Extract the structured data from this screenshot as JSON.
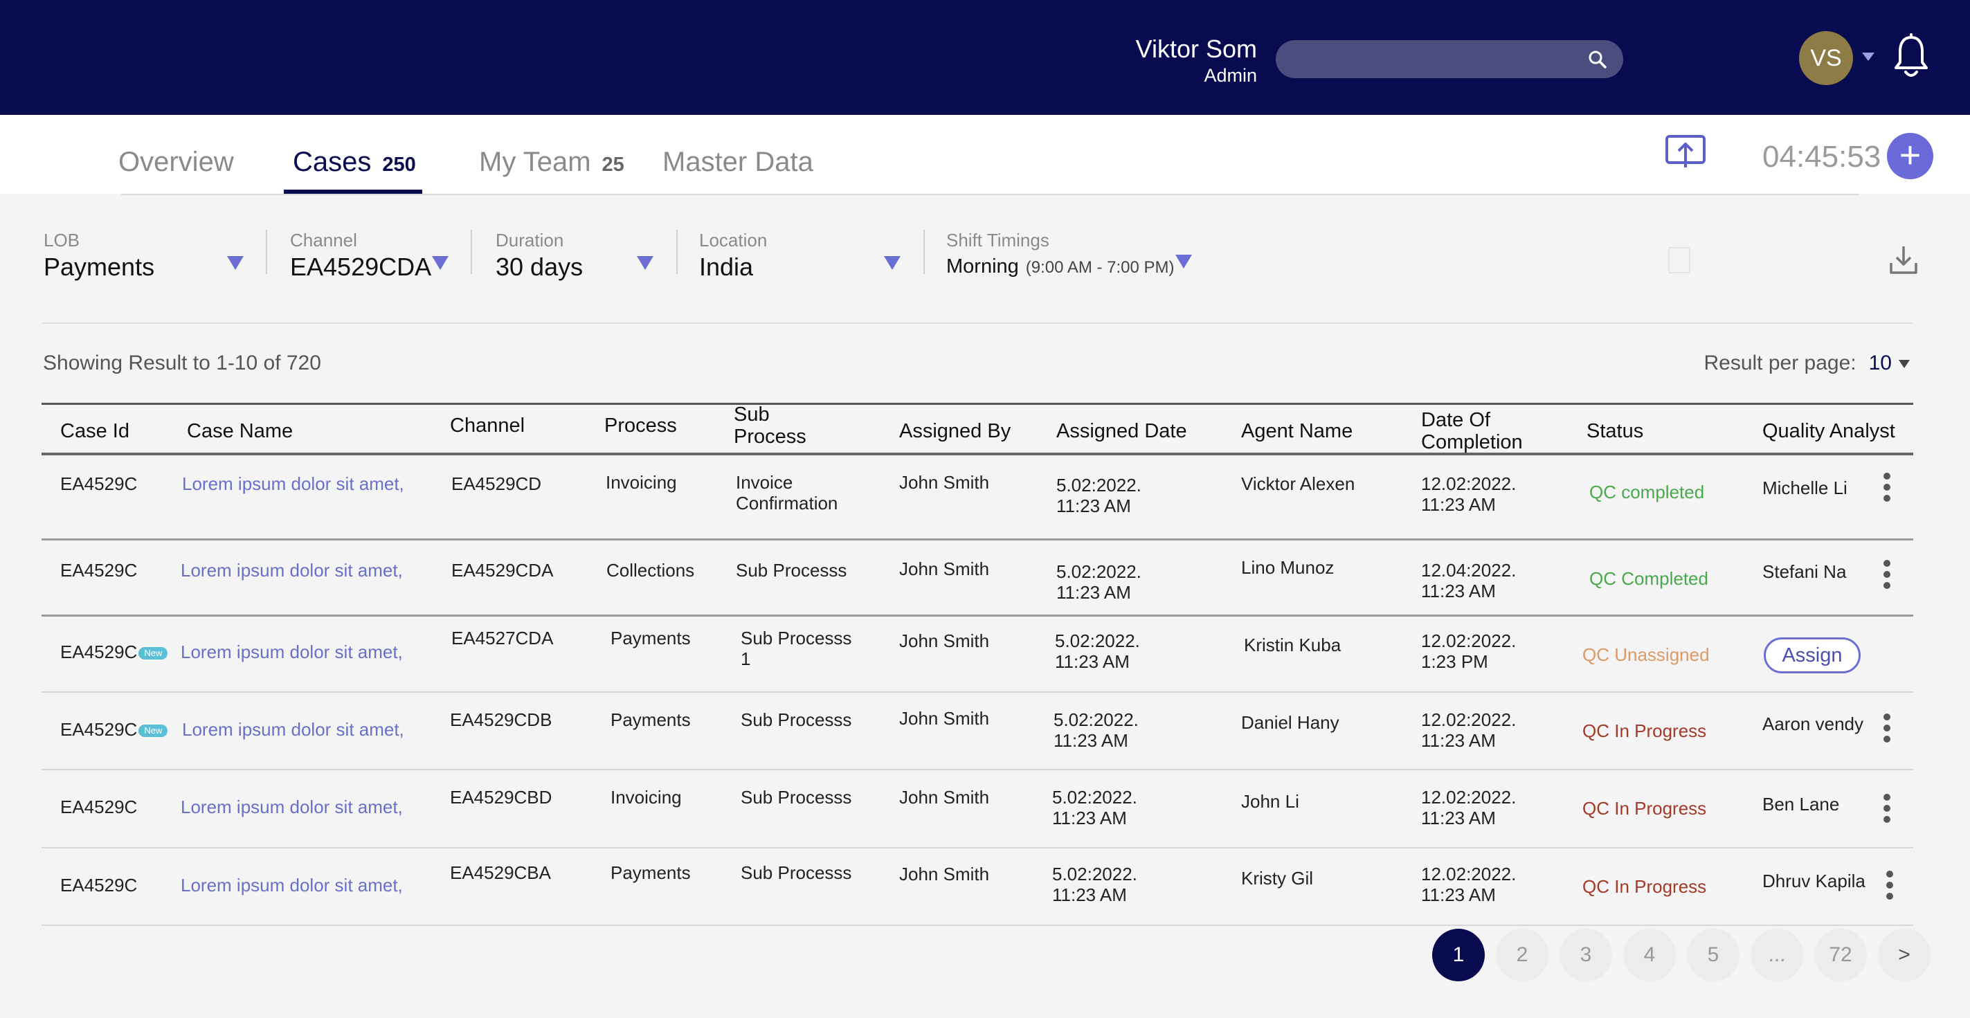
{
  "header": {
    "search_placeholder": "",
    "user_name": "Viktor Som",
    "user_role": "Admin",
    "avatar_initials": "VS"
  },
  "tabs": [
    {
      "label": "Overview",
      "count": ""
    },
    {
      "label": "Cases",
      "count": "250"
    },
    {
      "label": "My Team",
      "count": "25"
    },
    {
      "label": "Master Data",
      "count": ""
    }
  ],
  "timer": "04:45:53",
  "plus_label": "+",
  "filters": {
    "lob": {
      "label": "LOB",
      "value": "Payments"
    },
    "channel": {
      "label": "Channel",
      "value": "EA4529CDA"
    },
    "duration": {
      "label": "Duration",
      "value": "30 days"
    },
    "location": {
      "label": "Location",
      "value": "India"
    },
    "shift": {
      "label": "Shift Timings",
      "value": "Morning",
      "detail": "(9:00 AM - 7:00 PM)"
    }
  },
  "results": {
    "showing": "Showing Result to 1-10 of 720",
    "per_page_label": "Result per page:",
    "per_page_value": "10"
  },
  "table": {
    "columns": {
      "case_id": "Case Id",
      "case_name": "Case Name",
      "channel": "Channel",
      "process": "Process",
      "sub_process": "Sub\nProcess",
      "assigned_by": "Assigned By",
      "assigned_date": "Assigned Date",
      "agent_name": "Agent Name",
      "date_completion": "Date Of\nCompletion",
      "status": "Status",
      "quality_analyst": "Quality Analyst"
    },
    "rows": [
      {
        "case_id": "EA4529C",
        "badge": "",
        "case_name": "Lorem ipsum dolor sit amet,",
        "channel": "EA4529CD",
        "process": "Invoicing",
        "sub_process": "Invoice\nConfirmation",
        "assigned_by": "John Smith",
        "assigned_date": "5.02:2022.\n11:23 AM",
        "agent": "Vicktor Alexen",
        "completion": "12.02:2022.\n11:23 AM",
        "status": "QC completed",
        "status_class": "st-green",
        "qa": "Michelle Li",
        "action": "kebab"
      },
      {
        "case_id": "EA4529C",
        "badge": "",
        "case_name": "Lorem ipsum dolor sit amet,",
        "channel": "EA4529CDA",
        "process": "Collections",
        "sub_process": "Sub Processs",
        "assigned_by": "John Smith",
        "assigned_date": "5.02:2022.\n11:23 AM",
        "agent": "Lino Munoz",
        "completion": "12.04:2022.\n11:23 AM",
        "status": "QC Completed",
        "status_class": "st-green",
        "qa": "Stefani Na",
        "action": "kebab"
      },
      {
        "case_id": "EA4529C",
        "badge": "New",
        "case_name": "Lorem ipsum dolor sit amet,",
        "channel": "EA4527CDA",
        "process": "Payments",
        "sub_process": "Sub Processs\n1",
        "assigned_by": "John Smith",
        "assigned_date": "5.02:2022.\n11:23 AM",
        "agent": "Kristin Kuba",
        "completion": "12.02:2022.\n1:23 PM",
        "status": "QC Unassigned",
        "status_class": "st-orange",
        "qa": "",
        "action": "Assign"
      },
      {
        "case_id": "EA4529C",
        "badge": "New",
        "case_name": "Lorem ipsum dolor sit amet,",
        "channel": "EA4529CDB",
        "process": "Payments",
        "sub_process": "Sub Processs",
        "assigned_by": "John Smith",
        "assigned_date": "5.02:2022.\n11:23 AM",
        "agent": "Daniel Hany",
        "completion": "12.02:2022.\n11:23 AM",
        "status": "QC In Progress",
        "status_class": "st-red",
        "qa": "Aaron vendy",
        "action": "kebab"
      },
      {
        "case_id": "EA4529C",
        "badge": "",
        "case_name": "Lorem ipsum dolor sit amet,",
        "channel": "EA4529CBD",
        "process": "Invoicing",
        "sub_process": "Sub Processs",
        "assigned_by": "John Smith",
        "assigned_date": "5.02:2022.\n11:23 AM",
        "agent": "John Li",
        "completion": "12.02:2022.\n11:23 AM",
        "status": "QC In Progress",
        "status_class": "st-red",
        "qa": "Ben Lane",
        "action": "kebab"
      },
      {
        "case_id": "EA4529C",
        "badge": "",
        "case_name": "Lorem ipsum dolor sit amet,",
        "channel": "EA4529CBA",
        "process": "Payments",
        "sub_process": "Sub Processs",
        "assigned_by": "John Smith",
        "assigned_date": "5.02:2022.\n11:23 AM",
        "agent": "Kristy Gil",
        "completion": "12.02:2022.\n11:23 AM",
        "status": "QC In Progress",
        "status_class": "st-red",
        "qa": "Dhruv Kapila",
        "action": "kebab"
      }
    ]
  },
  "pagination": [
    "1",
    "2",
    "3",
    "4",
    "5",
    "...",
    "72",
    ">"
  ],
  "pagination_active": "1"
}
